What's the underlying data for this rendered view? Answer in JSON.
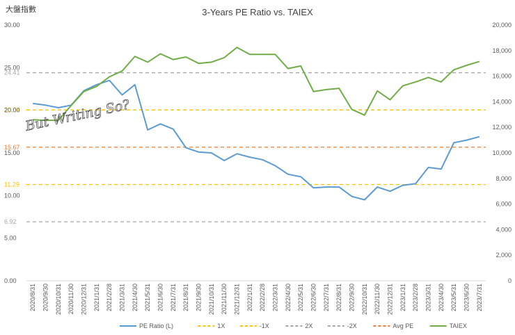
{
  "corner_label": "大盤指數",
  "watermark": "But Writing So?",
  "chart_data": {
    "type": "line",
    "title": "3-Years PE Ratio vs. TAIEX",
    "x": [
      "2020/8/31",
      "2020/9/30",
      "2020/10/31",
      "2020/11/30",
      "2020/12/31",
      "2021/1/31",
      "2021/2/28",
      "2021/3/31",
      "2021/4/30",
      "2021/5/31",
      "2021/6/30",
      "2021/7/31",
      "2021/8/31",
      "2021/9/30",
      "2021/10/31",
      "2021/11/30",
      "2021/12/31",
      "2022/1/31",
      "2022/2/28",
      "2022/3/31",
      "2022/4/30",
      "2022/5/31",
      "2022/6/30",
      "2022/7/31",
      "2022/8/31",
      "2022/9/30",
      "2022/10/31",
      "2022/11/30",
      "2022/12/31",
      "2023/1/31",
      "2023/2/28",
      "2023/3/31",
      "2023/4/30",
      "2023/5/31",
      "2023/6/30",
      "2023/7/31"
    ],
    "y_left": {
      "min": 0,
      "max": 30,
      "ticks": [
        "0.00",
        "5.00",
        "10.00",
        "15.00",
        "20.00",
        "25.00",
        "30.00"
      ]
    },
    "y_right": {
      "min": 0,
      "max": 20000,
      "ticks": [
        "0",
        "2,000",
        "4,000",
        "6,000",
        "8,000",
        "10,000",
        "12,000",
        "14,000",
        "16,000",
        "18,000",
        "20,000"
      ]
    },
    "reference_lines": [
      {
        "name": "2X",
        "value": 24.41,
        "label": "24.41",
        "color": "#a6a6a6"
      },
      {
        "name": "1X",
        "value": 20.04,
        "label": "20.04",
        "color": "#ffc000"
      },
      {
        "name": "Avg PE",
        "value": 15.67,
        "label": "15.67",
        "color": "#ed7d31"
      },
      {
        "name": "-1X",
        "value": 11.29,
        "label": "11.29",
        "color": "#ffc000"
      },
      {
        "name": "-2X",
        "value": 6.92,
        "label": "6.92",
        "color": "#a6a6a6"
      }
    ],
    "series": [
      {
        "name": "PE Ratio (L)",
        "axis": "left",
        "color": "#5b9bd5",
        "values": [
          20.8,
          20.6,
          20.3,
          20.6,
          22.3,
          23.0,
          23.5,
          21.8,
          23.0,
          17.7,
          18.4,
          17.8,
          15.6,
          15.1,
          15.0,
          14.1,
          14.9,
          14.5,
          14.2,
          13.5,
          12.5,
          12.2,
          10.9,
          11.0,
          11.0,
          9.9,
          9.5,
          11.0,
          10.5,
          11.2,
          11.4,
          13.3,
          13.1,
          16.2,
          16.5,
          16.9
        ]
      },
      {
        "name": "TAIEX",
        "axis": "right",
        "color": "#70ad47",
        "values": [
          12600,
          12550,
          12550,
          13700,
          14800,
          15200,
          15950,
          16400,
          17550,
          17100,
          17750,
          17300,
          17500,
          17000,
          17100,
          17450,
          18250,
          17700,
          17700,
          17700,
          16600,
          16800,
          14800,
          14950,
          15050,
          13400,
          12950,
          14850,
          14150,
          15250,
          15550,
          15900,
          15550,
          16500,
          16850,
          17150
        ]
      }
    ],
    "legend": {
      "position": "bottom",
      "entries": [
        {
          "name": "PE Ratio (L)",
          "color": "#5b9bd5",
          "dash": false
        },
        {
          "name": "1X",
          "color": "#ffc000",
          "dash": true
        },
        {
          "name": "-1X",
          "color": "#ffc000",
          "dash": true
        },
        {
          "name": "2X",
          "color": "#a6a6a6",
          "dash": true
        },
        {
          "name": "-2X",
          "color": "#a6a6a6",
          "dash": true
        },
        {
          "name": "Avg PE",
          "color": "#ed7d31",
          "dash": true
        },
        {
          "name": "TAIEX",
          "color": "#70ad47",
          "dash": false
        }
      ]
    },
    "grid": false
  }
}
